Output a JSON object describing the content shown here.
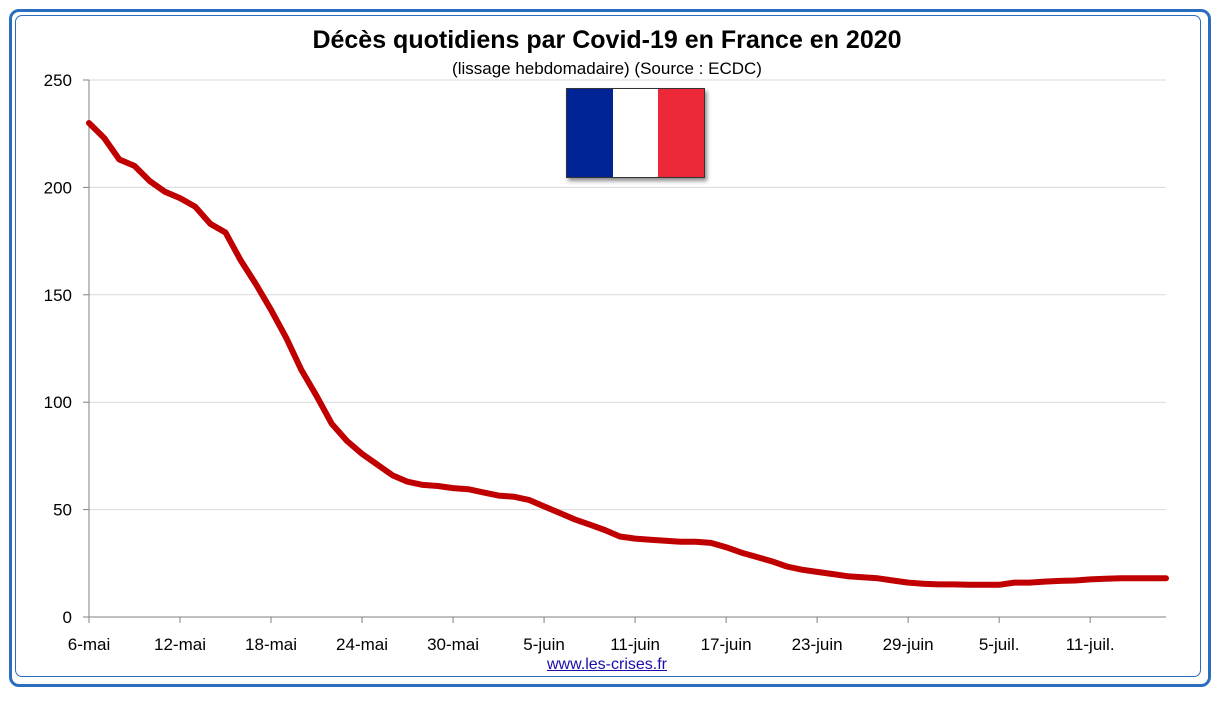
{
  "title": "Décès quotidiens par Covid-19 en France en 2020",
  "subtitle": "(lissage hebdomadaire) (Source : ECDC)",
  "source_link": "www.les-crises.fr",
  "flag": {
    "colors": [
      "#002395",
      "#ffffff",
      "#ed2939"
    ]
  },
  "colors": {
    "line": "#c00000",
    "grid": "#d9d9d9",
    "frame": "#2a6ebd"
  },
  "chart_data": {
    "type": "line",
    "title": "Décès quotidiens par Covid-19 en France en 2020",
    "subtitle": "(lissage hebdomadaire) (Source : ECDC)",
    "xlabel": "",
    "ylabel": "",
    "ylim": [
      0,
      250
    ],
    "yticks": [
      0,
      50,
      100,
      150,
      200,
      250
    ],
    "grid": true,
    "legend": "none",
    "xlim": [
      "2020-05-06",
      "2020-07-16"
    ],
    "xtick_labels": [
      "6-mai",
      "12-mai",
      "18-mai",
      "24-mai",
      "30-mai",
      "5-juin",
      "11-juin",
      "17-juin",
      "23-juin",
      "29-juin",
      "5-juil.",
      "11-juil."
    ],
    "series": [
      {
        "color": "#c00000",
        "x": [
          "2020-05-06",
          "2020-05-07",
          "2020-05-08",
          "2020-05-09",
          "2020-05-10",
          "2020-05-11",
          "2020-05-12",
          "2020-05-13",
          "2020-05-14",
          "2020-05-15",
          "2020-05-16",
          "2020-05-17",
          "2020-05-18",
          "2020-05-19",
          "2020-05-20",
          "2020-05-21",
          "2020-05-22",
          "2020-05-23",
          "2020-05-24",
          "2020-05-25",
          "2020-05-26",
          "2020-05-27",
          "2020-05-28",
          "2020-05-29",
          "2020-05-30",
          "2020-05-31",
          "2020-06-01",
          "2020-06-02",
          "2020-06-03",
          "2020-06-04",
          "2020-06-05",
          "2020-06-06",
          "2020-06-07",
          "2020-06-08",
          "2020-06-09",
          "2020-06-10",
          "2020-06-11",
          "2020-06-12",
          "2020-06-13",
          "2020-06-14",
          "2020-06-15",
          "2020-06-16",
          "2020-06-17",
          "2020-06-18",
          "2020-06-19",
          "2020-06-20",
          "2020-06-21",
          "2020-06-22",
          "2020-06-23",
          "2020-06-24",
          "2020-06-25",
          "2020-06-26",
          "2020-06-27",
          "2020-06-28",
          "2020-06-29",
          "2020-06-30",
          "2020-07-01",
          "2020-07-02",
          "2020-07-03",
          "2020-07-04",
          "2020-07-05",
          "2020-07-06",
          "2020-07-07",
          "2020-07-08",
          "2020-07-09",
          "2020-07-10",
          "2020-07-11",
          "2020-07-12",
          "2020-07-13",
          "2020-07-14",
          "2020-07-15",
          "2020-07-16"
        ],
        "values": [
          230,
          223,
          213,
          210,
          203,
          198,
          195,
          191,
          183,
          179,
          166,
          155,
          143,
          130,
          115,
          103,
          90,
          82,
          76,
          71,
          66,
          63,
          61.5,
          61,
          60,
          59.5,
          58,
          56.5,
          56,
          54.5,
          51.5,
          48.5,
          45.5,
          43,
          40.5,
          37.5,
          36.5,
          36,
          35.5,
          35,
          35,
          34.5,
          32.5,
          30,
          28,
          26,
          23.5,
          22,
          21,
          20,
          19,
          18.5,
          18,
          17,
          16,
          15.5,
          15.2,
          15.2,
          15,
          15,
          15,
          16,
          16,
          16.5,
          16.8,
          17,
          17.5,
          17.8,
          18,
          18,
          18,
          18
        ]
      }
    ]
  }
}
